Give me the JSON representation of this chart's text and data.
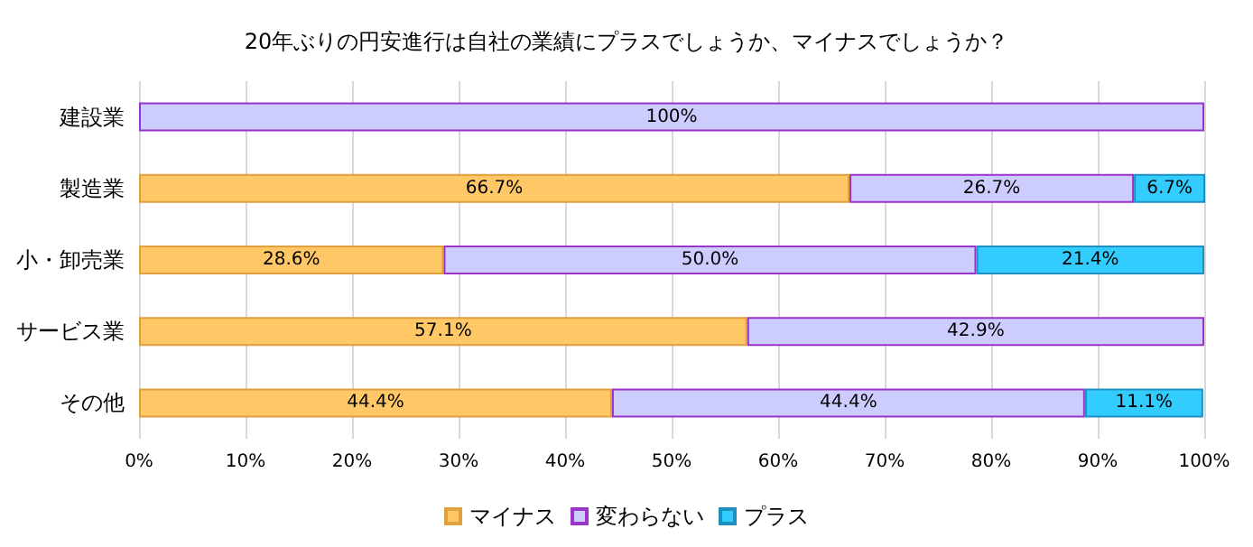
{
  "chart_data": {
    "type": "bar",
    "orientation": "horizontal",
    "stacked": true,
    "title": "20年ぶりの円安進行は自社の業績にプラスでしょうか、マイナスでしょうか？",
    "categories": [
      "建設業",
      "製造業",
      "小・卸売業",
      "サービス業",
      "その他"
    ],
    "series": [
      {
        "name": "マイナス",
        "color": "#ffc766",
        "values": [
          0,
          66.7,
          28.6,
          57.1,
          44.4
        ],
        "value_labels": [
          null,
          "66.7%",
          "28.6%",
          "57.1%",
          "44.4%"
        ]
      },
      {
        "name": "変わらない",
        "color": "#ccccff",
        "values": [
          100,
          26.7,
          50.0,
          42.9,
          44.4
        ],
        "value_labels": [
          "100%",
          "26.7%",
          "50.0%",
          "42.9%",
          "44.4%"
        ]
      },
      {
        "name": "プラス",
        "color": "#33ccff",
        "values": [
          0,
          6.7,
          21.4,
          0,
          11.1
        ],
        "value_labels": [
          null,
          "6.7%",
          "21.4%",
          null,
          "11.1%"
        ]
      }
    ],
    "xlim": [
      0,
      100
    ],
    "xticks": [
      {
        "value": 0,
        "label": "0%"
      },
      {
        "value": 10,
        "label": "10%"
      },
      {
        "value": 20,
        "label": "20%"
      },
      {
        "value": 30,
        "label": "30%"
      },
      {
        "value": 40,
        "label": "40%"
      },
      {
        "value": 50,
        "label": "50%"
      },
      {
        "value": 60,
        "label": "60%"
      },
      {
        "value": 70,
        "label": "70%"
      },
      {
        "value": 80,
        "label": "80%"
      },
      {
        "value": 90,
        "label": "90%"
      },
      {
        "value": 100,
        "label": "100%"
      }
    ],
    "grid": "x",
    "legend": "bottom"
  }
}
